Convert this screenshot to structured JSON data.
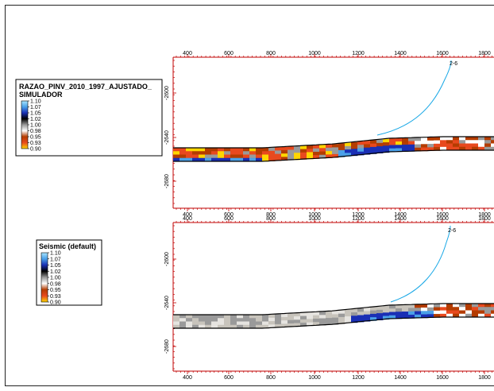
{
  "panels": [
    {
      "name": "top",
      "x_ticks": [
        "400",
        "600",
        "800",
        "1000",
        "1200",
        "1400",
        "1600",
        "1800"
      ],
      "y_ticks": [
        "-2600",
        "-2640",
        "-2680"
      ],
      "well_label": "2-6",
      "colorbar": "ratio"
    },
    {
      "name": "bottom",
      "x_ticks": [
        "400",
        "600",
        "800",
        "1000",
        "1200",
        "1400",
        "1600",
        "1800"
      ],
      "y_ticks": [
        "-2600",
        "-2640",
        "-2680"
      ],
      "well_label": "2-6",
      "colorbar": "seismic"
    }
  ],
  "legends": {
    "ratio": {
      "title_line1": "RAZAO_PINV_2010_1997_AJUSTADO_",
      "title_line2": "SIMULADOR",
      "values": [
        "1.10",
        "1.07",
        "1.05",
        "1.02",
        "1.00",
        "0.98",
        "0.95",
        "0.93",
        "0.90"
      ]
    },
    "seismic": {
      "title": "Seismic (default)",
      "values": [
        "1.10",
        "1.07",
        "1.05",
        "1.02",
        "1.00",
        "0.98",
        "0.95",
        "0.93",
        "0.90"
      ]
    }
  },
  "colors": {
    "frame": "#c00000",
    "well": "#19a8e6",
    "seismic_scale": [
      "#a8e6ff",
      "#4aa0e8",
      "#1a2fb5",
      "#000000",
      "#9a9a9a",
      "#ffffff",
      "#b43c00",
      "#e8491e",
      "#ffd600"
    ],
    "ratio_scale": [
      "#a8e6ff",
      "#4aa0e8",
      "#1a2fb5",
      "#000000",
      "#9a9a9a",
      "#ffffff",
      "#b43c00",
      "#e8491e",
      "#ffd600"
    ]
  }
}
